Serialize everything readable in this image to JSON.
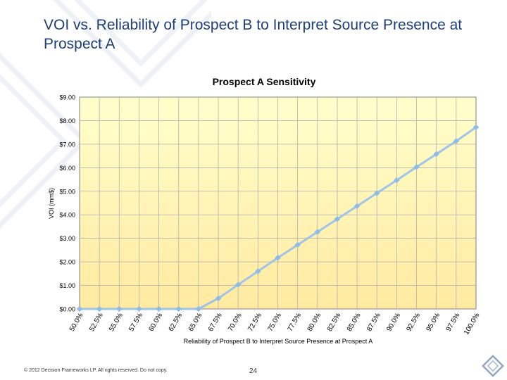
{
  "slide": {
    "title": "VOI vs. Reliability of Prospect B to Interpret Source Presence at Prospect A",
    "footer": "© 2012 Decision Frameworks LP. All rights reserved. Do not copy.",
    "page_number": "24"
  },
  "chart_data": {
    "type": "line",
    "title": "Prospect A Sensitivity",
    "xlabel": "Reliability of Prospect B to Interpret Source Presence at Prospect A",
    "ylabel": "VOI (mm$)",
    "categories": [
      "50.0%",
      "52.5%",
      "55.0%",
      "57.5%",
      "60.0%",
      "62.5%",
      "65.0%",
      "67.5%",
      "70.0%",
      "72.5%",
      "75.0%",
      "77.5%",
      "80.0%",
      "82.5%",
      "85.0%",
      "87.5%",
      "90.0%",
      "92.5%",
      "95.0%",
      "97.5%",
      "100.0%"
    ],
    "y_ticks": [
      "$0.00",
      "$1.00",
      "$2.00",
      "$3.00",
      "$4.00",
      "$5.00",
      "$6.00",
      "$7.00",
      "$8.00",
      "$9.00"
    ],
    "ylim": [
      0,
      9
    ],
    "grid": true,
    "series": [
      {
        "values": [
          0,
          0,
          0,
          0,
          0,
          0,
          0,
          0.45,
          1.03,
          1.6,
          2.17,
          2.72,
          3.27,
          3.82,
          4.37,
          4.92,
          5.47,
          6.03,
          6.58,
          7.13,
          7.72
        ]
      }
    ],
    "colors": {
      "line": "#9ec4ea",
      "marker": "#8fbce6",
      "plot_bg_top": "#ffffcc",
      "plot_bg_bottom": "#ffeaa0",
      "grid": "#b0b0b0"
    }
  }
}
